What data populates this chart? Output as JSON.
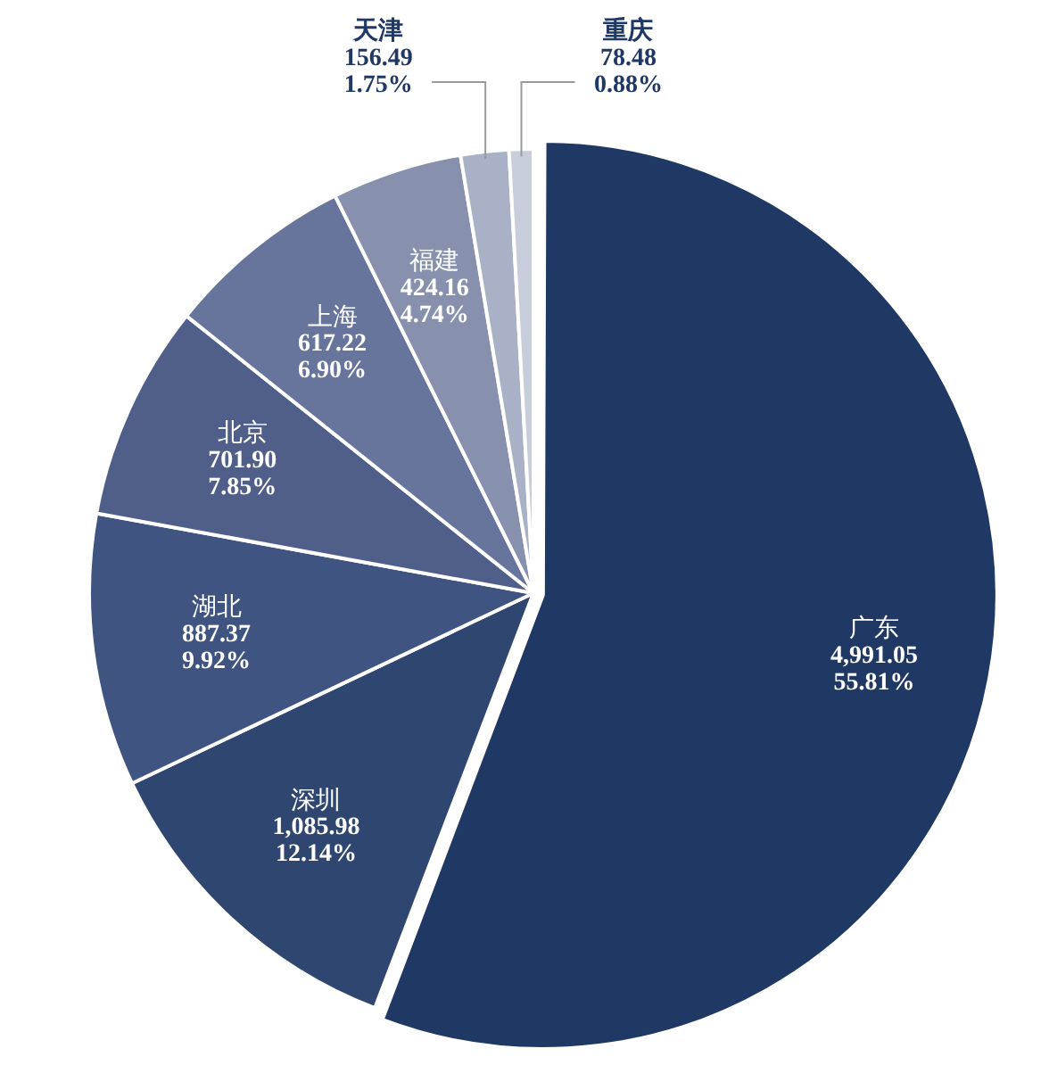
{
  "chart_data": {
    "type": "pie",
    "categories": [
      "广东",
      "深圳",
      "湖北",
      "北京",
      "上海",
      "福建",
      "天津",
      "重庆"
    ],
    "values": [
      4991.05,
      1085.98,
      887.37,
      701.9,
      617.22,
      424.16,
      156.49,
      78.48
    ],
    "value_labels": [
      "4,991.05\n55.81%",
      "1,085.98\n12.14%",
      "887.37\n9.92%",
      "701.90\n7.85%",
      "617.22\n6.90%",
      "424.16\n4.74%",
      "156.49\n1.75%",
      "78.48\n0.88%"
    ],
    "colors": [
      "#203864",
      "#2f4670",
      "#405482",
      "#4f5f89",
      "#67749b",
      "#8791ae",
      "#a9b1c6",
      "#c7cddb"
    ],
    "legend": false
  }
}
